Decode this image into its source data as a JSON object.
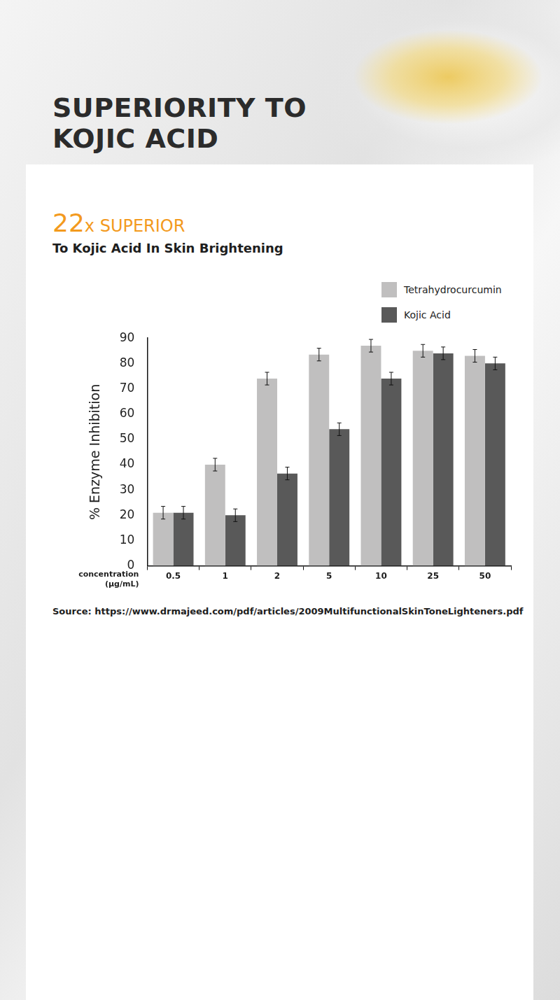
{
  "chart_data": {
    "type": "bar",
    "title": "SUPERIORITY TO KOJIC ACID",
    "headline": "22x SUPERIOR",
    "subtitle": "To Kojic Acid In Skin Brightening",
    "source": "Source: https://www.drmajeed.com/pdf/articles/2009MultifunctionalSkinToneLighteners.pdf",
    "x_label": "concentration (µg/mL)",
    "y_label": "% Enzyme Inhibition",
    "categories": [
      "0.5",
      "1",
      "2",
      "5",
      "10",
      "25",
      "50"
    ],
    "series": [
      {
        "name": "Tetrahydrocurcumin",
        "color": "#c0bfbf",
        "values": [
          21,
          40,
          74,
          83.5,
          87,
          85,
          83
        ],
        "errors": [
          2.5,
          2.5,
          2.5,
          2.5,
          2.5,
          2.5,
          2.5
        ]
      },
      {
        "name": "Kojic Acid",
        "color": "#595959",
        "values": [
          21,
          20,
          36.5,
          54,
          74,
          84,
          80
        ],
        "errors": [
          2.5,
          2.5,
          2.5,
          2.5,
          2.5,
          2.5,
          2.5
        ]
      }
    ],
    "ylim": [
      0,
      90
    ],
    "yticks": [
      0,
      10,
      20,
      30,
      40,
      50,
      60,
      70,
      80,
      90
    ],
    "grid": false,
    "legend": "top-right"
  }
}
